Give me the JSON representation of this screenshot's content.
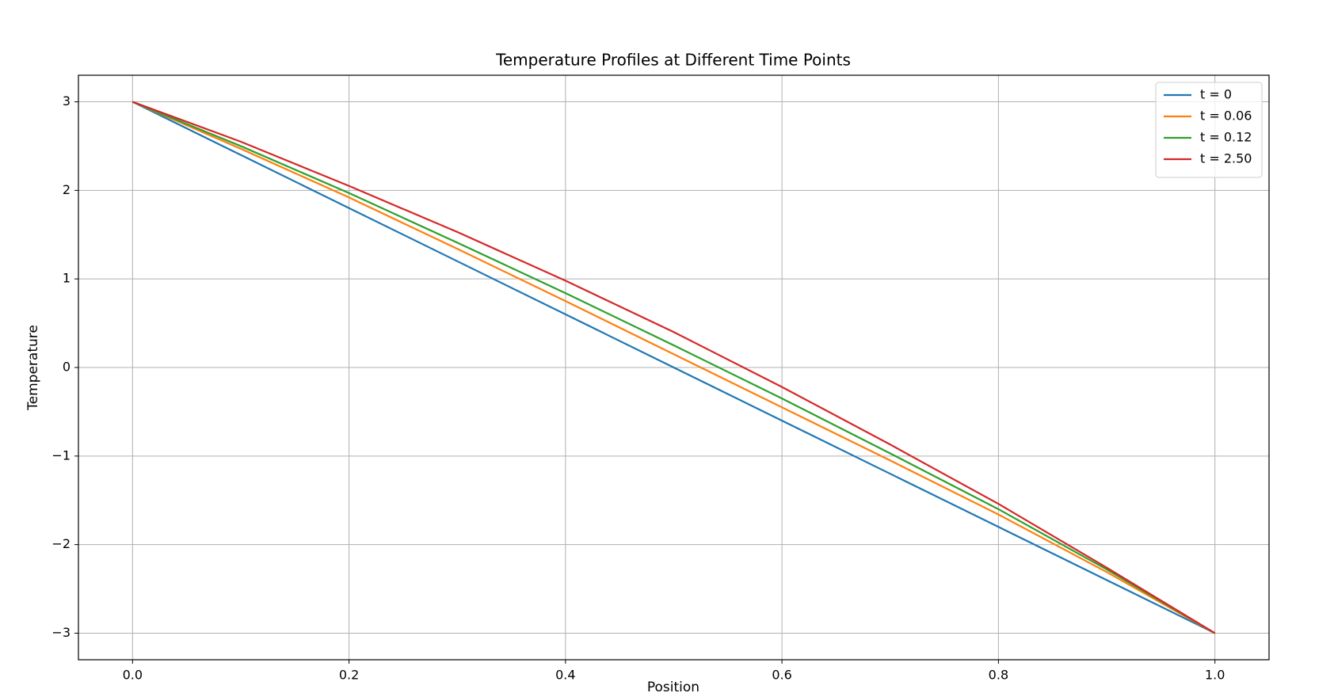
{
  "chart_data": {
    "type": "line",
    "title": "Temperature Profiles at Different Time Points",
    "xlabel": "Position",
    "ylabel": "Temperature",
    "x": [
      0,
      0.1,
      0.2,
      0.3,
      0.4,
      0.5,
      0.6,
      0.7,
      0.8,
      0.9,
      1.0
    ],
    "series": [
      {
        "name": "t = 0",
        "color": "#1f77b4",
        "values": [
          3,
          2.4,
          1.8,
          1.2,
          0.6,
          0,
          -0.6,
          -1.2,
          -1.8,
          -2.4,
          -3
        ]
      },
      {
        "name": "t = 0.06",
        "color": "#ff7f0e",
        "values": [
          3,
          2.47,
          1.92,
          1.34,
          0.75,
          0.15,
          -0.45,
          -1.05,
          -1.66,
          -2.31,
          -3
        ]
      },
      {
        "name": "t = 0.12",
        "color": "#2ca02c",
        "values": [
          3,
          2.5,
          1.97,
          1.41,
          0.84,
          0.25,
          -0.35,
          -0.97,
          -1.6,
          -2.28,
          -3
        ]
      },
      {
        "name": "t = 2.50",
        "color": "#d62728",
        "values": [
          3,
          2.55,
          2.05,
          1.53,
          0.98,
          0.4,
          -0.22,
          -0.87,
          -1.54,
          -2.26,
          -3
        ]
      }
    ],
    "xlim": [
      -0.05,
      1.05
    ],
    "xticks": [
      {
        "value": 0,
        "label": "0.0"
      },
      {
        "value": 0.2,
        "label": "0.2"
      },
      {
        "value": 0.4,
        "label": "0.4"
      },
      {
        "value": 0.6,
        "label": "0.6"
      },
      {
        "value": 0.8,
        "label": "0.8"
      },
      {
        "value": 1.0,
        "label": "1.0"
      }
    ],
    "ylim": [
      -3.3,
      3.3
    ],
    "yticks": [
      {
        "value": -3,
        "label": "−3"
      },
      {
        "value": -2,
        "label": "−2"
      },
      {
        "value": -1,
        "label": "−1"
      },
      0,
      1,
      2,
      3
    ],
    "grid": true,
    "legend": "upper right"
  }
}
